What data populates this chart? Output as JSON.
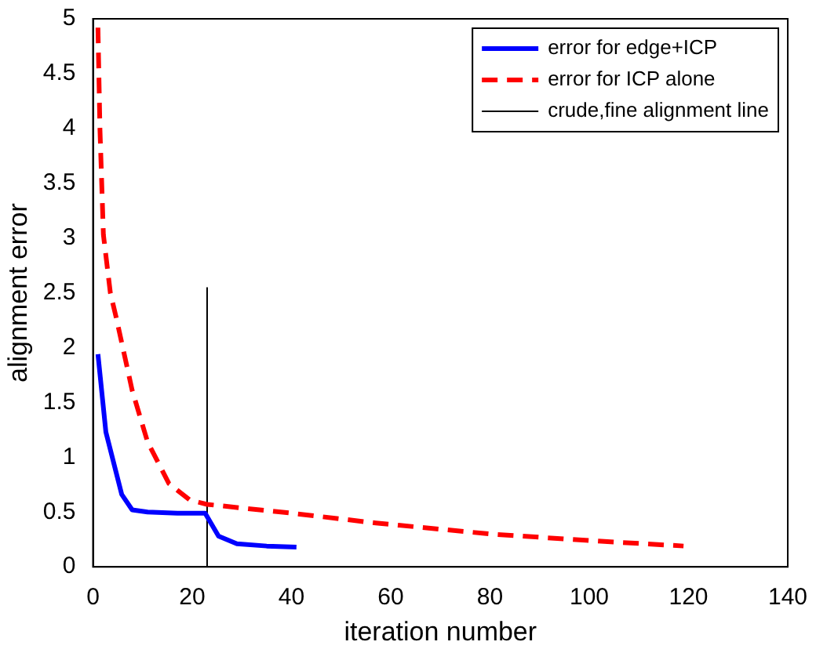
{
  "chart_data": {
    "type": "line",
    "xlabel": "iteration number",
    "ylabel": "alignment error",
    "xlim": [
      0,
      140
    ],
    "xticks": [
      0,
      20,
      40,
      60,
      80,
      100,
      120,
      140
    ],
    "ylim": [
      0,
      5
    ],
    "yticks": [
      0,
      0.5,
      1,
      1.5,
      2,
      2.5,
      3,
      3.5,
      4,
      4.5,
      5
    ],
    "grid": false,
    "legend": "top right",
    "marker": "none",
    "series": [
      {
        "name": "error for edge+ICP",
        "color": "#0000ff",
        "line_style": "solid",
        "x": [
          1,
          2.6,
          5.8,
          7.9,
          11,
          17,
          22.6,
          25.3,
          29,
          35,
          41
        ],
        "values": [
          1.94,
          1.23,
          0.66,
          0.52,
          0.5,
          0.49,
          0.49,
          0.28,
          0.21,
          0.19,
          0.18
        ]
      },
      {
        "name": "error for ICP alone",
        "color": "#ff0000",
        "line_style": "dashed",
        "x": [
          1,
          1.4,
          2.1,
          3.5,
          4.7,
          7.9,
          11,
          15.3,
          19.5,
          23,
          40,
          57,
          80,
          100,
          119
        ],
        "values": [
          4.92,
          4.0,
          3.03,
          2.5,
          2.27,
          1.61,
          1.14,
          0.76,
          0.61,
          0.57,
          0.49,
          0.4,
          0.3,
          0.24,
          0.19
        ]
      },
      {
        "name": "crude,fine alignment line",
        "color": "#000000",
        "line_style": "solid",
        "x": [
          23,
          23
        ],
        "values": [
          0,
          2.55
        ]
      }
    ]
  }
}
